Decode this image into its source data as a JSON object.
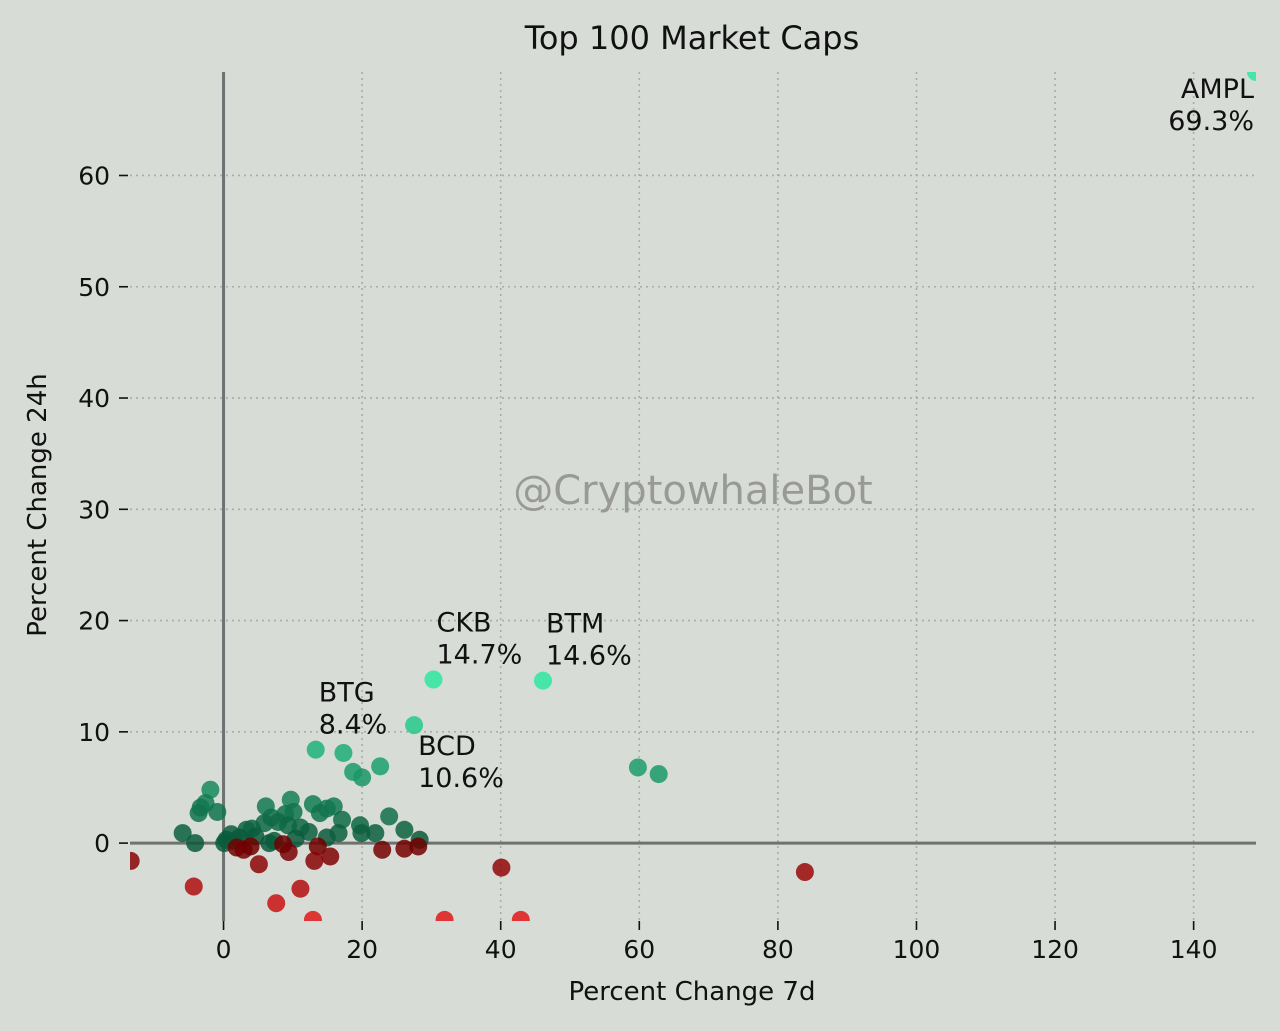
{
  "chart_data": {
    "type": "scatter",
    "title": "Top 100 Market Caps",
    "xlabel": "Percent Change 7d",
    "ylabel": "Percent Change 24h",
    "xlim": [
      -13.5,
      149
    ],
    "ylim": [
      -7,
      69.3
    ],
    "xticks": [
      "0",
      "20",
      "40",
      "60",
      "80",
      "100",
      "120",
      "140"
    ],
    "yticks": [
      "0",
      "10",
      "20",
      "30",
      "40",
      "50",
      "60"
    ],
    "xtick_values": [
      0,
      20,
      40,
      60,
      80,
      100,
      120,
      140
    ],
    "ytick_values": [
      0,
      10,
      20,
      30,
      40,
      50,
      60
    ],
    "grid": true,
    "zero_lines": true,
    "watermark": "@CryptowhaleBot",
    "colors": {
      "background": "#d7dcd6",
      "gain_bright": "#2ee8a0",
      "gain_dark": "#0b5b3c",
      "loss_bright": "#e01818",
      "loss_dark": "#6f0000"
    },
    "annotations": [
      {
        "name": "AMPL",
        "value_text": "69.3%",
        "x": 149,
        "y": 69.3,
        "align": "end"
      },
      {
        "name": "CKB",
        "value_text": "14.7%",
        "x": 30.3,
        "y": 14.7,
        "align": "start"
      },
      {
        "name": "BTM",
        "value_text": "14.6%",
        "x": 46.1,
        "y": 14.6,
        "align": "start"
      },
      {
        "name": "BTG",
        "value_text": "8.4%",
        "x": 13.3,
        "y": 8.4,
        "align": "start"
      },
      {
        "name": "BCD",
        "value_text": "10.6%",
        "x": 27.5,
        "y": 10.6,
        "align": "start"
      }
    ],
    "points": [
      {
        "x": 149,
        "y": 69.3
      },
      {
        "x": 30.3,
        "y": 14.7
      },
      {
        "x": 46.1,
        "y": 14.6
      },
      {
        "x": 27.5,
        "y": 10.6
      },
      {
        "x": 13.3,
        "y": 8.4
      },
      {
        "x": 17.3,
        "y": 8.1
      },
      {
        "x": 22.6,
        "y": 6.9
      },
      {
        "x": 18.7,
        "y": 6.4
      },
      {
        "x": 20.0,
        "y": 5.9
      },
      {
        "x": 59.8,
        "y": 6.8
      },
      {
        "x": 62.8,
        "y": 6.2
      },
      {
        "x": -1.9,
        "y": 4.8
      },
      {
        "x": -2.6,
        "y": 3.6
      },
      {
        "x": -3.3,
        "y": 3.2
      },
      {
        "x": -3.6,
        "y": 2.7
      },
      {
        "x": -0.9,
        "y": 2.8
      },
      {
        "x": -5.9,
        "y": 0.9
      },
      {
        "x": 6.1,
        "y": 3.3
      },
      {
        "x": 9.7,
        "y": 3.9
      },
      {
        "x": 12.9,
        "y": 3.5
      },
      {
        "x": 15.9,
        "y": 3.3
      },
      {
        "x": 14.9,
        "y": 3.1
      },
      {
        "x": 8.9,
        "y": 2.6
      },
      {
        "x": 10.1,
        "y": 2.8
      },
      {
        "x": 13.9,
        "y": 2.7
      },
      {
        "x": 6.9,
        "y": 2.3
      },
      {
        "x": 5.9,
        "y": 1.8
      },
      {
        "x": 7.9,
        "y": 1.9
      },
      {
        "x": 3.3,
        "y": 1.2
      },
      {
        "x": 4.1,
        "y": 1.3
      },
      {
        "x": 9.3,
        "y": 1.6
      },
      {
        "x": 11.1,
        "y": 1.4
      },
      {
        "x": 17.1,
        "y": 2.1
      },
      {
        "x": 19.7,
        "y": 1.6
      },
      {
        "x": 23.9,
        "y": 2.4
      },
      {
        "x": 21.9,
        "y": 0.9
      },
      {
        "x": 26.1,
        "y": 1.2
      },
      {
        "x": 28.3,
        "y": 0.3
      },
      {
        "x": 14.9,
        "y": 0.5
      },
      {
        "x": 19.9,
        "y": 0.9
      },
      {
        "x": 1.1,
        "y": 0.8
      },
      {
        "x": 2.3,
        "y": 0.5
      },
      {
        "x": 12.3,
        "y": 1.0
      },
      {
        "x": 16.6,
        "y": 0.9
      },
      {
        "x": 0.4,
        "y": 0.3
      },
      {
        "x": 1.6,
        "y": 0.2
      },
      {
        "x": 4.6,
        "y": 0.6
      },
      {
        "x": 7.3,
        "y": 0.2
      },
      {
        "x": 10.4,
        "y": 0.4
      },
      {
        "x": 13.6,
        "y": -0.3
      },
      {
        "x": 15.4,
        "y": -1.2
      },
      {
        "x": 13.1,
        "y": -1.6
      },
      {
        "x": 9.4,
        "y": -0.8
      },
      {
        "x": 5.1,
        "y": -1.9
      },
      {
        "x": 2.9,
        "y": -0.6
      },
      {
        "x": 0.1,
        "y": 0.0
      },
      {
        "x": 1.9,
        "y": -0.4
      },
      {
        "x": 3.9,
        "y": -0.3
      },
      {
        "x": 6.6,
        "y": 0.0
      },
      {
        "x": 8.6,
        "y": -0.1
      },
      {
        "x": -4.1,
        "y": 0.0
      },
      {
        "x": -13.4,
        "y": -1.6
      },
      {
        "x": -4.3,
        "y": -3.9
      },
      {
        "x": 7.6,
        "y": -5.4
      },
      {
        "x": 11.1,
        "y": -4.1
      },
      {
        "x": 12.9,
        "y": -6.9
      },
      {
        "x": 22.9,
        "y": -0.6
      },
      {
        "x": 26.1,
        "y": -0.5
      },
      {
        "x": 28.1,
        "y": -0.3
      },
      {
        "x": 40.1,
        "y": -2.2
      },
      {
        "x": 83.9,
        "y": -2.6
      },
      {
        "x": 31.9,
        "y": -6.9
      },
      {
        "x": 42.9,
        "y": -6.9
      }
    ]
  }
}
